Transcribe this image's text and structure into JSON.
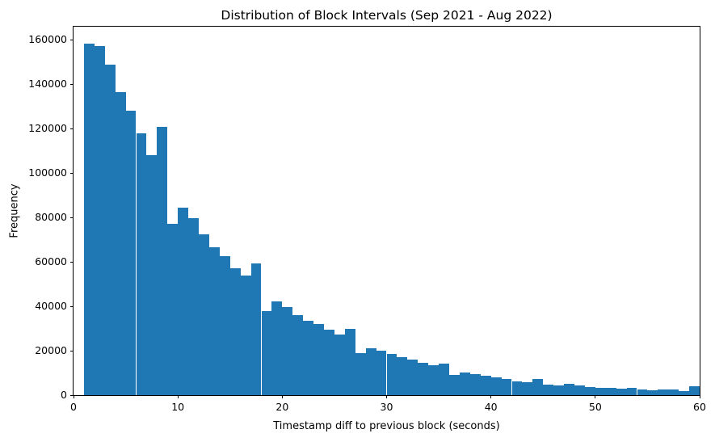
{
  "chart_data": {
    "type": "bar",
    "subtype": "histogram",
    "title": "Distribution of Block Intervals (Sep 2021 - Aug 2022)",
    "xlabel": "Timestamp diff to previous block (seconds)",
    "ylabel": "Frequency",
    "bar_color": "#1f77b4",
    "background_color": "#ffffff",
    "grid": false,
    "legend": false,
    "xlim": [
      0,
      60
    ],
    "ylim": [
      0,
      166000
    ],
    "x_ticks": [
      0,
      10,
      20,
      30,
      40,
      50,
      60
    ],
    "y_ticks": [
      0,
      20000,
      40000,
      60000,
      80000,
      100000,
      120000,
      140000,
      160000
    ],
    "bin_width": 1,
    "bin_starts": [
      1,
      2,
      3,
      4,
      5,
      6,
      7,
      8,
      9,
      10,
      11,
      12,
      13,
      14,
      15,
      16,
      17,
      18,
      19,
      20,
      21,
      22,
      23,
      24,
      25,
      26,
      27,
      28,
      29,
      30,
      31,
      32,
      33,
      34,
      35,
      36,
      37,
      38,
      39,
      40,
      41,
      42,
      43,
      44,
      45,
      46,
      47,
      48,
      49,
      50,
      51,
      52,
      53,
      54,
      55,
      56,
      57,
      58,
      59
    ],
    "values": [
      158400,
      157200,
      149000,
      136700,
      128300,
      117900,
      108000,
      121000,
      77000,
      84500,
      79800,
      72400,
      66500,
      62800,
      57100,
      53800,
      59400,
      38000,
      42300,
      39600,
      36000,
      33400,
      32000,
      29600,
      27200,
      30000,
      19000,
      21000,
      19900,
      18400,
      17100,
      15900,
      14500,
      13500,
      14300,
      9200,
      10100,
      9400,
      8700,
      8000,
      7400,
      6200,
      5700,
      7200,
      4900,
      4300,
      5000,
      4300,
      3800,
      3400,
      3400,
      3000,
      3300,
      2500,
      2200,
      2400,
      2400,
      1700,
      3900
    ]
  }
}
